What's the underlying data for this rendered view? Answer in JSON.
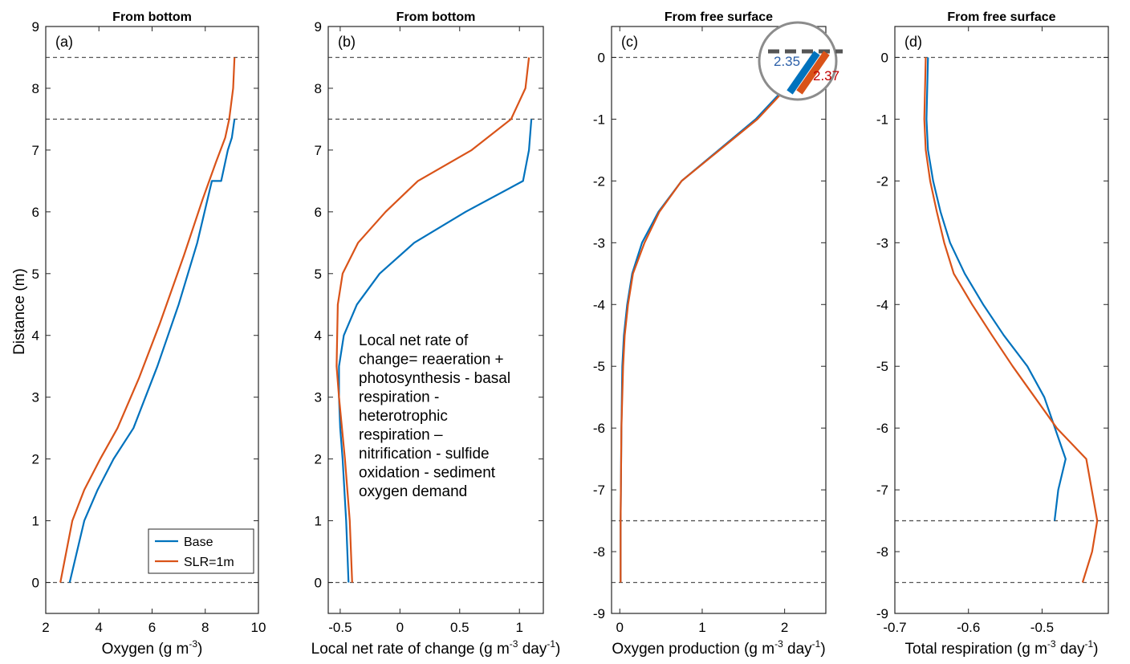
{
  "colors": {
    "base": "#0072BD",
    "slr": "#D95319",
    "dash": "#555555",
    "inset_base_text": "#2B5FA8",
    "inset_slr_text": "#C00000"
  },
  "legend": {
    "entries": [
      "Base",
      "SLR=1m"
    ]
  },
  "ylabel_shared": "Distance (m)",
  "note_text": [
    "Local net rate of",
    "change= reaeration +",
    "photosynthesis - basal",
    "respiration -",
    "heterotrophic",
    "respiration –",
    "nitrification - sulfide",
    "oxidation - sediment",
    "oxygen demand"
  ],
  "inset": {
    "base_value": "2.35",
    "slr_value": "2.37"
  },
  "chart_data": [
    {
      "type": "line",
      "panel_label": "(a)",
      "title": "From bottom",
      "xlabel_main": "Oxygen (g m",
      "xlabel_sup": "-3",
      "xlabel_end": ")",
      "xlim": [
        2,
        10
      ],
      "ylim": [
        -0.5,
        9
      ],
      "xticks": [
        2,
        4,
        6,
        8,
        10
      ],
      "yticks": [
        0,
        1,
        2,
        3,
        4,
        5,
        6,
        7,
        8,
        9
      ],
      "hlines": [
        0,
        7.5,
        8.5
      ],
      "series": [
        {
          "name": "Base",
          "x": [
            2.9,
            3.45,
            3.95,
            4.55,
            5.3,
            6.2,
            7.0,
            7.7,
            8.25,
            8.6,
            8.85,
            9.0,
            9.1,
            9.1
          ],
          "y": [
            0,
            1,
            1.5,
            2,
            2.5,
            3.5,
            4.5,
            5.5,
            6.5,
            6.5,
            7.0,
            7.2,
            7.5,
            7.5
          ]
        },
        {
          "name": "SLR=1m",
          "x": [
            2.55,
            3.0,
            3.45,
            4.05,
            4.7,
            5.5,
            6.3,
            7.2,
            7.9,
            8.4,
            8.75,
            8.9,
            9.05,
            9.1
          ],
          "y": [
            0,
            1,
            1.5,
            2,
            2.5,
            3.3,
            4.2,
            5.3,
            6.2,
            6.8,
            7.2,
            7.5,
            8.0,
            8.5
          ]
        }
      ]
    },
    {
      "type": "line",
      "panel_label": "(b)",
      "title": "From bottom",
      "xlabel_main": "Local net rate of change (g m",
      "xlabel_sup": "-3",
      "xlabel_end": " day",
      "xlabel_sup2": "-1",
      "xlabel_end2": ")",
      "xlim": [
        -0.6,
        1.2
      ],
      "ylim": [
        -0.5,
        9
      ],
      "xticks": [
        -0.5,
        0,
        0.5,
        1
      ],
      "yticks": [
        0,
        1,
        2,
        3,
        4,
        5,
        6,
        7,
        8,
        9
      ],
      "hlines": [
        0,
        7.5,
        8.5
      ],
      "series": [
        {
          "name": "Base",
          "x": [
            -0.43,
            -0.45,
            -0.48,
            -0.5,
            -0.51,
            -0.51,
            -0.47,
            -0.36,
            -0.17,
            0.12,
            0.55,
            1.03,
            1.08,
            1.1,
            1.1
          ],
          "y": [
            0,
            1,
            2,
            2.5,
            3,
            3.5,
            4,
            4.5,
            5,
            5.5,
            6,
            6.5,
            7,
            7.5,
            7.5
          ]
        },
        {
          "name": "SLR=1m",
          "x": [
            -0.4,
            -0.42,
            -0.46,
            -0.51,
            -0.53,
            -0.52,
            -0.48,
            -0.35,
            -0.12,
            0.15,
            0.6,
            0.93,
            1.05,
            1.08
          ],
          "y": [
            0,
            1,
            2,
            3,
            3.5,
            4.5,
            5,
            5.5,
            6,
            6.5,
            7,
            7.5,
            8,
            8.5
          ]
        }
      ]
    },
    {
      "type": "line",
      "panel_label": "(c)",
      "title": "From free surface",
      "xlabel_main": "Oxygen production (g m",
      "xlabel_sup": "-3",
      "xlabel_end": " day",
      "xlabel_sup2": "-1",
      "xlabel_end2": ")",
      "xlim": [
        -0.1,
        2.5
      ],
      "ylim": [
        -9,
        0.5
      ],
      "xticks": [
        0,
        1,
        2
      ],
      "yticks": [
        0,
        -1,
        -2,
        -3,
        -4,
        -5,
        -6,
        -7,
        -8,
        -9
      ],
      "hlines": [
        0,
        -7.5,
        -8.5
      ],
      "series": [
        {
          "name": "Base",
          "x": [
            2.35,
            1.65,
            0.75,
            0.47,
            0.27,
            0.15,
            0.09,
            0.05,
            0.03,
            0.02,
            0.01,
            0.01
          ],
          "y": [
            0,
            -1,
            -2,
            -2.5,
            -3,
            -3.5,
            -4,
            -4.5,
            -5,
            -6,
            -7.5,
            -8.5
          ]
        },
        {
          "name": "SLR=1m",
          "x": [
            2.37,
            1.67,
            0.75,
            0.48,
            0.3,
            0.16,
            0.1,
            0.06,
            0.04,
            0.02,
            0.01,
            0.01
          ],
          "y": [
            0,
            -1,
            -2,
            -2.5,
            -3,
            -3.5,
            -4,
            -4.5,
            -5,
            -6,
            -7.5,
            -8.5
          ]
        }
      ]
    },
    {
      "type": "line",
      "panel_label": "(d)",
      "title": "From free surface",
      "xlabel_main": "Total respiration (g m",
      "xlabel_sup": "-3",
      "xlabel_end": " day",
      "xlabel_sup2": "-1",
      "xlabel_end2": ")",
      "xlim": [
        -0.7,
        -0.41
      ],
      "ylim": [
        -9,
        0.5
      ],
      "xticks": [
        -0.7,
        -0.6,
        -0.5
      ],
      "xticklabels": [
        "-0.7",
        "-0.6",
        "-0.5"
      ],
      "yticks": [
        0,
        -1,
        -2,
        -3,
        -4,
        -5,
        -6,
        -7,
        -8,
        -9
      ],
      "hlines": [
        0,
        -7.5,
        -8.5
      ],
      "series": [
        {
          "name": "Base",
          "x": [
            -0.655,
            -0.657,
            -0.655,
            -0.648,
            -0.638,
            -0.625,
            -0.605,
            -0.58,
            -0.552,
            -0.52,
            -0.497,
            -0.468,
            -0.478,
            -0.483
          ],
          "y": [
            0,
            -1,
            -1.5,
            -2,
            -2.5,
            -3,
            -3.5,
            -4,
            -4.5,
            -5,
            -5.5,
            -6.5,
            -7.0,
            -7.5
          ]
        },
        {
          "name": "SLR=1m",
          "x": [
            -0.658,
            -0.66,
            -0.658,
            -0.652,
            -0.643,
            -0.633,
            -0.62,
            -0.595,
            -0.568,
            -0.54,
            -0.51,
            -0.48,
            -0.44,
            -0.425,
            -0.432,
            -0.445
          ],
          "y": [
            0,
            -1,
            -1.5,
            -2,
            -2.5,
            -3,
            -3.5,
            -4,
            -4.5,
            -5,
            -5.5,
            -6,
            -6.5,
            -7.5,
            -8.0,
            -8.5
          ]
        }
      ]
    }
  ]
}
